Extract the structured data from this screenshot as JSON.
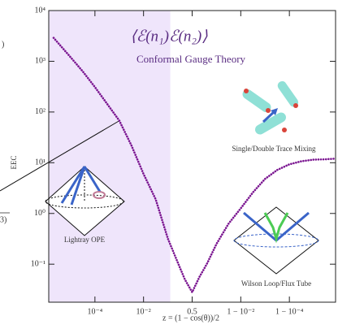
{
  "chart_data": {
    "type": "line",
    "title": "⟨ℰ(n₁)ℰ(n₂)⟩",
    "subtitle": "Conformal Gauge Theory",
    "x_label": "z = (1 − cos(θ))/2",
    "y_label": "EEC",
    "annotations": [
      "Single/Double Trace Mixing",
      "Lightray OPE",
      "Wilson Loop/Flux Tube"
    ],
    "left_fragments": [
      ")",
      "3)"
    ],
    "x": [
      -5.7,
      -5,
      -4.5,
      -4,
      -3.5,
      -3,
      -2.5,
      -2,
      -1.5,
      -1,
      -0.6,
      -0.3,
      0,
      0.3,
      0.6,
      1,
      1.5,
      2,
      2.5,
      3,
      3.5,
      4,
      4.5,
      5,
      5.5,
      5.85
    ],
    "series": [
      {
        "name": "EEC",
        "color": "#7a1590",
        "values": [
          2900,
          1200,
          630,
          310,
          145,
          68,
          22,
          6.0,
          1.9,
          0.32,
          0.11,
          0.05,
          0.028,
          0.056,
          0.1,
          0.25,
          0.63,
          1.26,
          2.6,
          4.8,
          7.2,
          9.3,
          10.7,
          11.5,
          11.7,
          12
        ]
      }
    ],
    "xlim": [
      -5.9,
      5.9
    ],
    "xticks": [
      {
        "value": -4,
        "label": "10⁻⁴"
      },
      {
        "value": -2,
        "label": "10⁻²"
      },
      {
        "value": 0,
        "label": "0.5"
      },
      {
        "value": 2,
        "label": "1 − 10⁻²"
      },
      {
        "value": 4,
        "label": "1 − 10⁻⁴"
      }
    ],
    "ylim": [
      0.0178,
      10000
    ],
    "log_y": true,
    "yticks": [
      {
        "value": 0.1,
        "label": "10⁻¹"
      },
      {
        "value": 1,
        "label": "10⁰"
      },
      {
        "value": 10,
        "label": "10¹"
      },
      {
        "value": 100,
        "label": "10²"
      },
      {
        "value": 1000,
        "label": "10³"
      },
      {
        "value": 10000,
        "label": "10⁴"
      }
    ],
    "shade_x": [
      -5.9,
      -0.9
    ],
    "shade_color": "#efe5fb"
  }
}
